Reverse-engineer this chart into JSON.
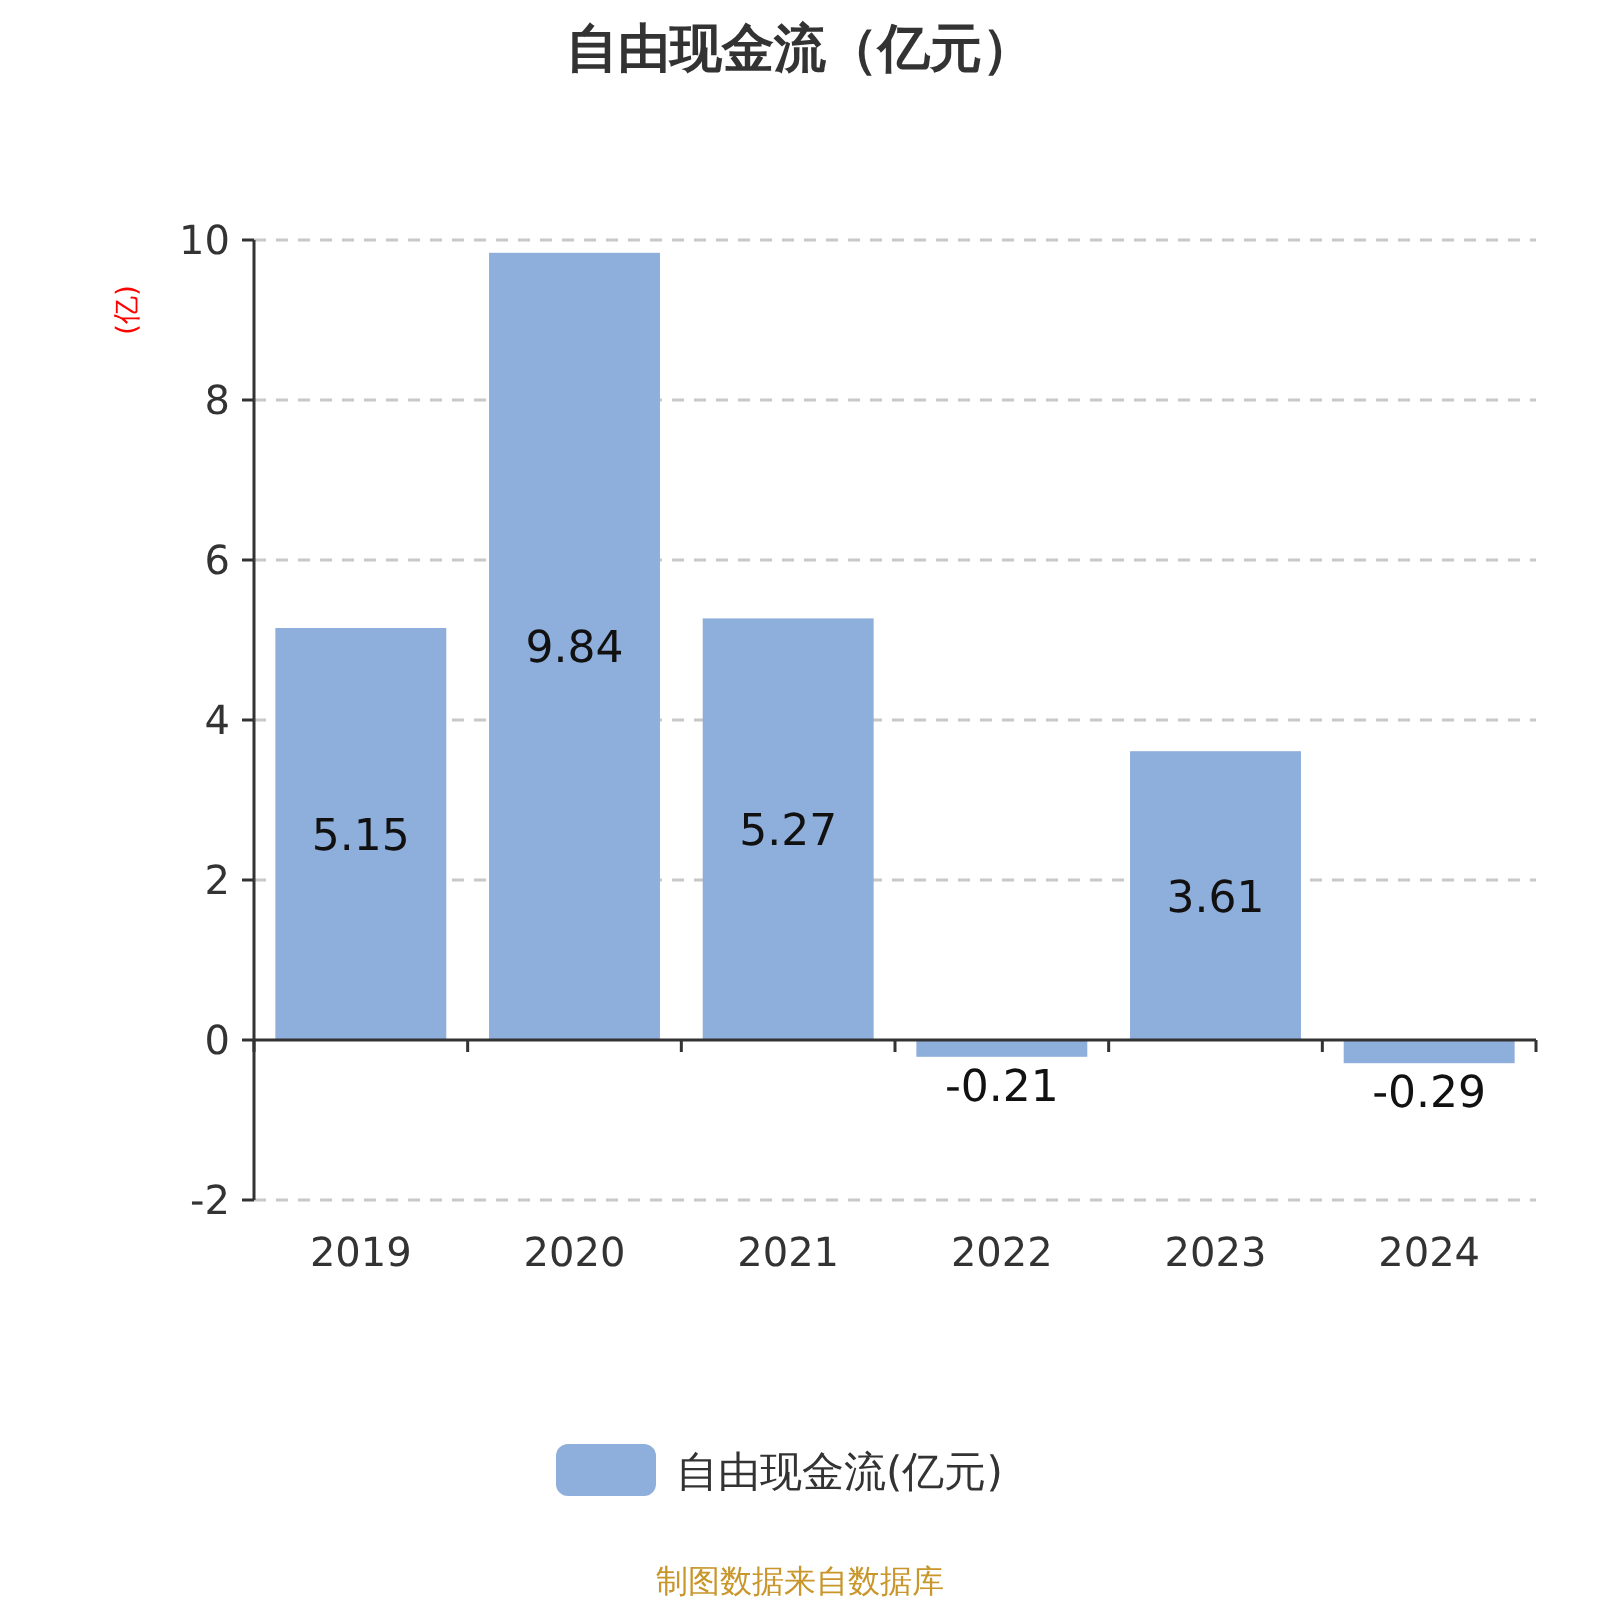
{
  "chart_data": {
    "type": "bar",
    "title": "自由现金流（亿元）",
    "ylabel": "(亿)",
    "categories": [
      "2019",
      "2020",
      "2021",
      "2022",
      "2023",
      "2024"
    ],
    "series": [
      {
        "name": "自由现金流(亿元)",
        "color": "#8eaedb",
        "values": [
          5.15,
          9.84,
          5.27,
          -0.21,
          3.61,
          -0.29
        ]
      }
    ],
    "ylim": [
      -2,
      10
    ],
    "yticks": [
      -2,
      0,
      2,
      4,
      6,
      8,
      10
    ],
    "grid": "y",
    "legend": "bottom",
    "data_labels": true,
    "annotations": [
      "制图数据来自数据库"
    ]
  }
}
